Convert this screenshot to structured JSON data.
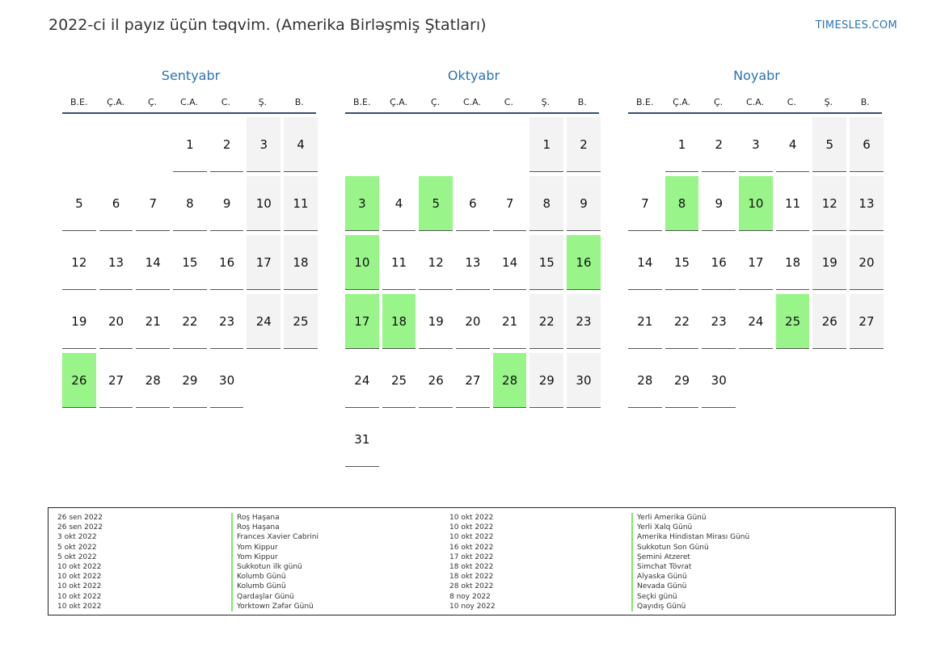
{
  "header": {
    "title": "2022-ci il payız üçün təqvim. (Amerika Birləşmiş Ştatları)",
    "brand": "TIMESLES.COM"
  },
  "weekdays": [
    "B.E.",
    "Ç.A.",
    "Ç.",
    "C.A.",
    "C.",
    "Ş.",
    "B."
  ],
  "colors": {
    "accent": "#2b73b0",
    "holiday": "#99f58a",
    "weekend": "#f3f3f3"
  },
  "months": [
    {
      "name": "Sentyabr",
      "offset": 3,
      "days": 30,
      "holidays": [
        26
      ]
    },
    {
      "name": "Oktyabr",
      "offset": 5,
      "days": 31,
      "holidays": [
        3,
        5,
        10,
        16,
        17,
        18,
        28
      ]
    },
    {
      "name": "Noyabr",
      "offset": 1,
      "days": 30,
      "holidays": [
        8,
        10,
        25
      ]
    }
  ],
  "legend": {
    "left": [
      {
        "date": "26 sen 2022",
        "name": "Roş Haşana"
      },
      {
        "date": "26 sen 2022",
        "name": "Roş Haşana"
      },
      {
        "date": "3 okt 2022",
        "name": "Frances Xavier Cabrini"
      },
      {
        "date": "5 okt 2022",
        "name": "Yom Kippur"
      },
      {
        "date": "5 okt 2022",
        "name": "Yom Kippur"
      },
      {
        "date": "10 okt 2022",
        "name": "Sukkotun ilk günü"
      },
      {
        "date": "10 okt 2022",
        "name": "Kolumb Günü"
      },
      {
        "date": "10 okt 2022",
        "name": "Kolumb Günü"
      },
      {
        "date": "10 okt 2022",
        "name": "Qardaşlar Günü"
      },
      {
        "date": "10 okt 2022",
        "name": "Yorktown Zəfər Günü"
      }
    ],
    "right": [
      {
        "date": "10 okt 2022",
        "name": "Yerli Amerika Günü"
      },
      {
        "date": "10 okt 2022",
        "name": "Yerli Xalq Günü"
      },
      {
        "date": "10 okt 2022",
        "name": "Amerika Hindistan Mirası Günü"
      },
      {
        "date": "16 okt 2022",
        "name": "Sukkotun Son Günü"
      },
      {
        "date": "17 okt 2022",
        "name": "Şemini Atzeret"
      },
      {
        "date": "18 okt 2022",
        "name": "Simchat Tövrat"
      },
      {
        "date": "18 okt 2022",
        "name": "Alyaska Günü"
      },
      {
        "date": "28 okt 2022",
        "name": "Nevada Günü"
      },
      {
        "date": "8 noy 2022",
        "name": "Seçki günü"
      },
      {
        "date": "10 noy 2022",
        "name": "Qayıdış Günü"
      }
    ]
  }
}
